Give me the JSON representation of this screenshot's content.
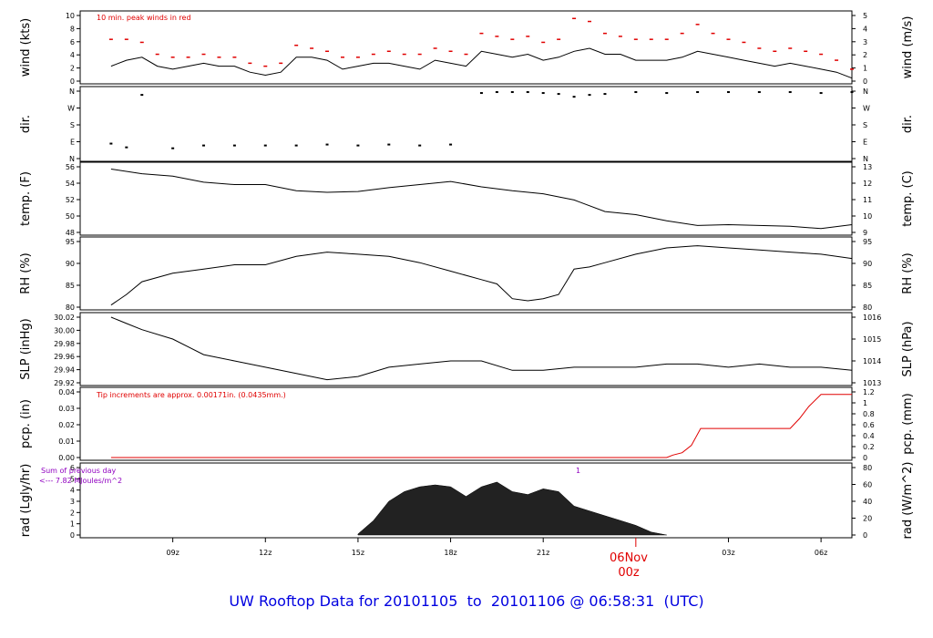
{
  "title": "UW Rooftop Data for 20101105  to  20101106 @ 06:58:31  (UTC)",
  "colors": {
    "title": "#0000e0",
    "trace": "#000000",
    "peak": "#e00000",
    "precip": "#e00000",
    "note": "#9000c0"
  },
  "x_axis": {
    "ticks": [
      "09z",
      "12z",
      "15z",
      "18z",
      "21z",
      "03z",
      "06z"
    ],
    "date_marker": {
      "line1": "06Nov",
      "line2": "00z"
    }
  },
  "panels": [
    {
      "id": "wind",
      "left_label": "wind (kts)",
      "right_label": "wind (m/s)",
      "left_ticks": [
        "0",
        "2",
        "4",
        "6",
        "8",
        "10"
      ],
      "right_ticks": [
        "0",
        "1",
        "2",
        "3",
        "4",
        "5"
      ],
      "note": "10 min. peak winds in red"
    },
    {
      "id": "dir",
      "left_label": "dir.",
      "right_label": "dir.",
      "left_ticks": [
        "N",
        "E",
        "S",
        "W",
        "N"
      ],
      "right_ticks": [
        "N",
        "E",
        "S",
        "W",
        "N"
      ]
    },
    {
      "id": "temp",
      "left_label": "temp. (F)",
      "right_label": "temp. (C)",
      "left_ticks": [
        "48",
        "50",
        "52",
        "54",
        "56"
      ],
      "right_ticks": [
        "9",
        "10",
        "11",
        "12",
        "13"
      ]
    },
    {
      "id": "rh",
      "left_label": "RH (%)",
      "right_label": "RH (%)",
      "left_ticks": [
        "80",
        "85",
        "90",
        "95"
      ],
      "right_ticks": [
        "80",
        "85",
        "90",
        "95"
      ]
    },
    {
      "id": "slp",
      "left_label": "SLP (inHg)",
      "right_label": "SLP (hPa)",
      "left_ticks": [
        "29.92",
        "29.94",
        "29.96",
        "29.98",
        "30.00",
        "30.02"
      ],
      "right_ticks": [
        "1013",
        "1014",
        "1015",
        "1016"
      ]
    },
    {
      "id": "pcp",
      "left_label": "pcp. (in)",
      "right_label": "pcp. (mm)",
      "left_ticks": [
        "0.00",
        "0.01",
        "0.02",
        "0.03",
        "0.04"
      ],
      "right_ticks": [
        "0",
        "0.2",
        "0.4",
        "0.6",
        "0.8",
        "1",
        "1.2"
      ],
      "note": "Tip increments are approx. 0.00171in. (0.0435mm.)"
    },
    {
      "id": "rad",
      "left_label": "rad (Lgly/hr)",
      "right_label": "rad (W/m^2)",
      "left_ticks": [
        "0",
        "1",
        "2",
        "3",
        "4",
        "5",
        "6"
      ],
      "right_ticks": [
        "0",
        "20",
        "40",
        "60",
        "80"
      ],
      "note_line1": "Sum of previous day",
      "note_line2": "<--- 7.82 MJoules/m^2",
      "marker": "1"
    }
  ],
  "chart_data": [
    {
      "type": "line",
      "panel": "wind",
      "ylabel": "wind (kts)",
      "ylim": [
        0,
        11
      ],
      "series": [
        {
          "x": [
            7.0,
            7.5,
            8.0,
            8.5,
            9.0,
            9.5,
            10.0,
            10.5,
            11.0,
            11.5,
            12.0,
            12.5,
            13.0,
            13.5,
            14.0,
            14.5,
            15.0,
            15.5,
            16.0,
            16.5,
            17.0,
            17.5,
            18.0,
            18.5,
            19.0,
            19.5,
            20.0,
            20.5,
            21.0,
            21.5,
            22.0,
            22.5,
            23.0,
            23.5,
            24.0,
            24.5,
            25.0,
            25.5,
            26.0,
            26.5,
            27.0,
            27.5,
            28.0,
            28.5,
            29.0,
            29.5,
            30.0,
            30.5,
            31.0
          ],
          "y": [
            2.5,
            3.5,
            4.0,
            2.5,
            2.0,
            2.5,
            3.0,
            2.5,
            2.5,
            1.5,
            1.0,
            1.5,
            4.0,
            4.0,
            3.5,
            2.0,
            2.5,
            3.0,
            3.0,
            2.5,
            2.0,
            3.5,
            3.0,
            2.5,
            5.0,
            4.5,
            4.0,
            4.5,
            3.5,
            4.0,
            5.0,
            5.5,
            4.5,
            4.5,
            3.5,
            3.5,
            3.5,
            4.0,
            5.0,
            4.5,
            4.0,
            3.5,
            3.0,
            2.5,
            3.0,
            2.5,
            2.0,
            1.5,
            0.5
          ]
        },
        {
          "name": "10 min. peak winds",
          "x": [
            7.0,
            7.5,
            8.0,
            8.5,
            9.0,
            9.5,
            10.0,
            10.5,
            11.0,
            11.5,
            12.0,
            12.5,
            13.0,
            13.5,
            14.0,
            14.5,
            15.0,
            15.5,
            16.0,
            16.5,
            17.0,
            17.5,
            18.0,
            18.5,
            19.0,
            19.5,
            20.0,
            20.5,
            21.0,
            21.5,
            22.0,
            22.5,
            23.0,
            23.5,
            24.0,
            24.5,
            25.0,
            25.5,
            26.0,
            26.5,
            27.0,
            27.5,
            28.0,
            28.5,
            29.0,
            29.5,
            30.0,
            30.5,
            31.0
          ],
          "y": [
            7.0,
            7.0,
            6.5,
            4.5,
            4.0,
            4.0,
            4.5,
            4.0,
            4.0,
            3.0,
            2.5,
            3.0,
            6.0,
            5.5,
            5.0,
            4.0,
            4.0,
            4.5,
            5.0,
            4.5,
            4.5,
            5.5,
            5.0,
            4.5,
            8.0,
            7.5,
            7.0,
            7.5,
            6.5,
            7.0,
            10.5,
            10.0,
            8.0,
            7.5,
            7.0,
            7.0,
            7.0,
            8.0,
            9.5,
            8.0,
            7.0,
            6.5,
            5.5,
            5.0,
            5.5,
            5.0,
            4.5,
            3.5,
            2.0
          ]
        }
      ]
    },
    {
      "type": "scatter",
      "panel": "dir",
      "ylabel": "dir.",
      "ylim": [
        0,
        360
      ],
      "x": [
        7.0,
        7.5,
        8.0,
        9.0,
        10.0,
        11.0,
        12.0,
        13.0,
        14.0,
        15.0,
        16.0,
        17.0,
        18.0,
        19.0,
        19.5,
        20.0,
        20.5,
        21.0,
        21.5,
        22.0,
        22.5,
        23.0,
        24.0,
        25.0,
        26.0,
        27.0,
        28.0,
        29.0,
        30.0,
        31.0
      ],
      "y": [
        80,
        60,
        340,
        55,
        70,
        70,
        70,
        70,
        75,
        70,
        75,
        70,
        75,
        350,
        355,
        355,
        355,
        350,
        345,
        330,
        340,
        345,
        355,
        350,
        355,
        355,
        355,
        355,
        350,
        355
      ]
    },
    {
      "type": "line",
      "panel": "temp",
      "ylabel": "temp. (F)",
      "ylim": [
        48,
        56.5
      ],
      "x": [
        7.0,
        8.0,
        9.0,
        10.0,
        11.0,
        12.0,
        13.0,
        14.0,
        15.0,
        16.0,
        17.0,
        18.0,
        19.0,
        20.0,
        21.0,
        22.0,
        23.0,
        24.0,
        25.0,
        26.0,
        27.0,
        28.0,
        29.0,
        30.0,
        31.0
      ],
      "y": [
        56.2,
        55.6,
        55.3,
        54.5,
        54.2,
        54.2,
        53.4,
        53.2,
        53.3,
        53.8,
        54.2,
        54.6,
        53.9,
        53.4,
        53.0,
        52.2,
        50.7,
        50.3,
        49.5,
        48.9,
        49.0,
        48.9,
        48.8,
        48.5,
        49.0
      ]
    },
    {
      "type": "line",
      "panel": "rh",
      "ylabel": "RH (%)",
      "ylim": [
        79.5,
        95
      ],
      "x": [
        7.0,
        7.5,
        8.0,
        9.0,
        10.0,
        11.0,
        12.0,
        13.0,
        14.0,
        15.0,
        16.0,
        17.0,
        18.0,
        19.0,
        19.5,
        20.0,
        20.5,
        21.0,
        21.5,
        22.0,
        22.5,
        23.0,
        24.0,
        25.0,
        26.0,
        27.0,
        28.0,
        29.0,
        30.0,
        31.0
      ],
      "y": [
        80.0,
        82.5,
        85.5,
        87.5,
        88.5,
        89.5,
        89.5,
        91.5,
        92.5,
        92.0,
        91.5,
        90.0,
        88.0,
        86.0,
        85.0,
        81.5,
        81.0,
        81.5,
        82.5,
        88.5,
        89.0,
        90.0,
        92.0,
        93.5,
        94.0,
        93.5,
        93.0,
        92.5,
        92.0,
        91.0
      ]
    },
    {
      "type": "line",
      "panel": "slp",
      "ylabel": "SLP (inHg)",
      "ylim": [
        29.915,
        30.02
      ],
      "x": [
        7.0,
        7.5,
        8.0,
        9.0,
        10.0,
        11.0,
        12.0,
        13.0,
        14.0,
        15.0,
        16.0,
        17.0,
        18.0,
        19.0,
        20.0,
        21.0,
        22.0,
        23.0,
        24.0,
        25.0,
        26.0,
        27.0,
        28.0,
        29.0,
        30.0,
        31.0
      ],
      "y": [
        30.02,
        30.01,
        30.0,
        29.985,
        29.96,
        29.95,
        29.94,
        29.93,
        29.92,
        29.925,
        29.94,
        29.945,
        29.95,
        29.95,
        29.935,
        29.935,
        29.94,
        29.94,
        29.94,
        29.945,
        29.945,
        29.94,
        29.945,
        29.94,
        29.94,
        29.935
      ]
    },
    {
      "type": "area",
      "panel": "pcp",
      "ylabel": "pcp. (in)",
      "ylim": [
        0,
        0.046
      ],
      "x": [
        7.0,
        25.0,
        25.2,
        25.5,
        25.8,
        26.1,
        26.5,
        27.0,
        28.0,
        29.0,
        29.3,
        29.6,
        30.0,
        31.0
      ],
      "y": [
        0.0,
        0.0,
        0.0017,
        0.0034,
        0.0085,
        0.0204,
        0.0204,
        0.0204,
        0.0204,
        0.0204,
        0.0272,
        0.0357,
        0.0442,
        0.0442
      ]
    },
    {
      "type": "area",
      "panel": "rad",
      "ylabel": "rad (Lgly/hr)",
      "ylim": [
        0,
        7
      ],
      "x": [
        15.0,
        15.5,
        16.0,
        16.5,
        17.0,
        17.5,
        18.0,
        18.5,
        19.0,
        19.5,
        20.0,
        20.5,
        21.0,
        21.5,
        22.0,
        22.5,
        23.0,
        23.5,
        24.0,
        24.5,
        25.0
      ],
      "y": [
        0.1,
        1.5,
        3.5,
        4.5,
        5.0,
        5.2,
        5.0,
        4.0,
        5.0,
        5.5,
        4.5,
        4.2,
        4.8,
        4.5,
        3.0,
        2.5,
        2.0,
        1.5,
        1.0,
        0.3,
        0.0
      ]
    }
  ]
}
